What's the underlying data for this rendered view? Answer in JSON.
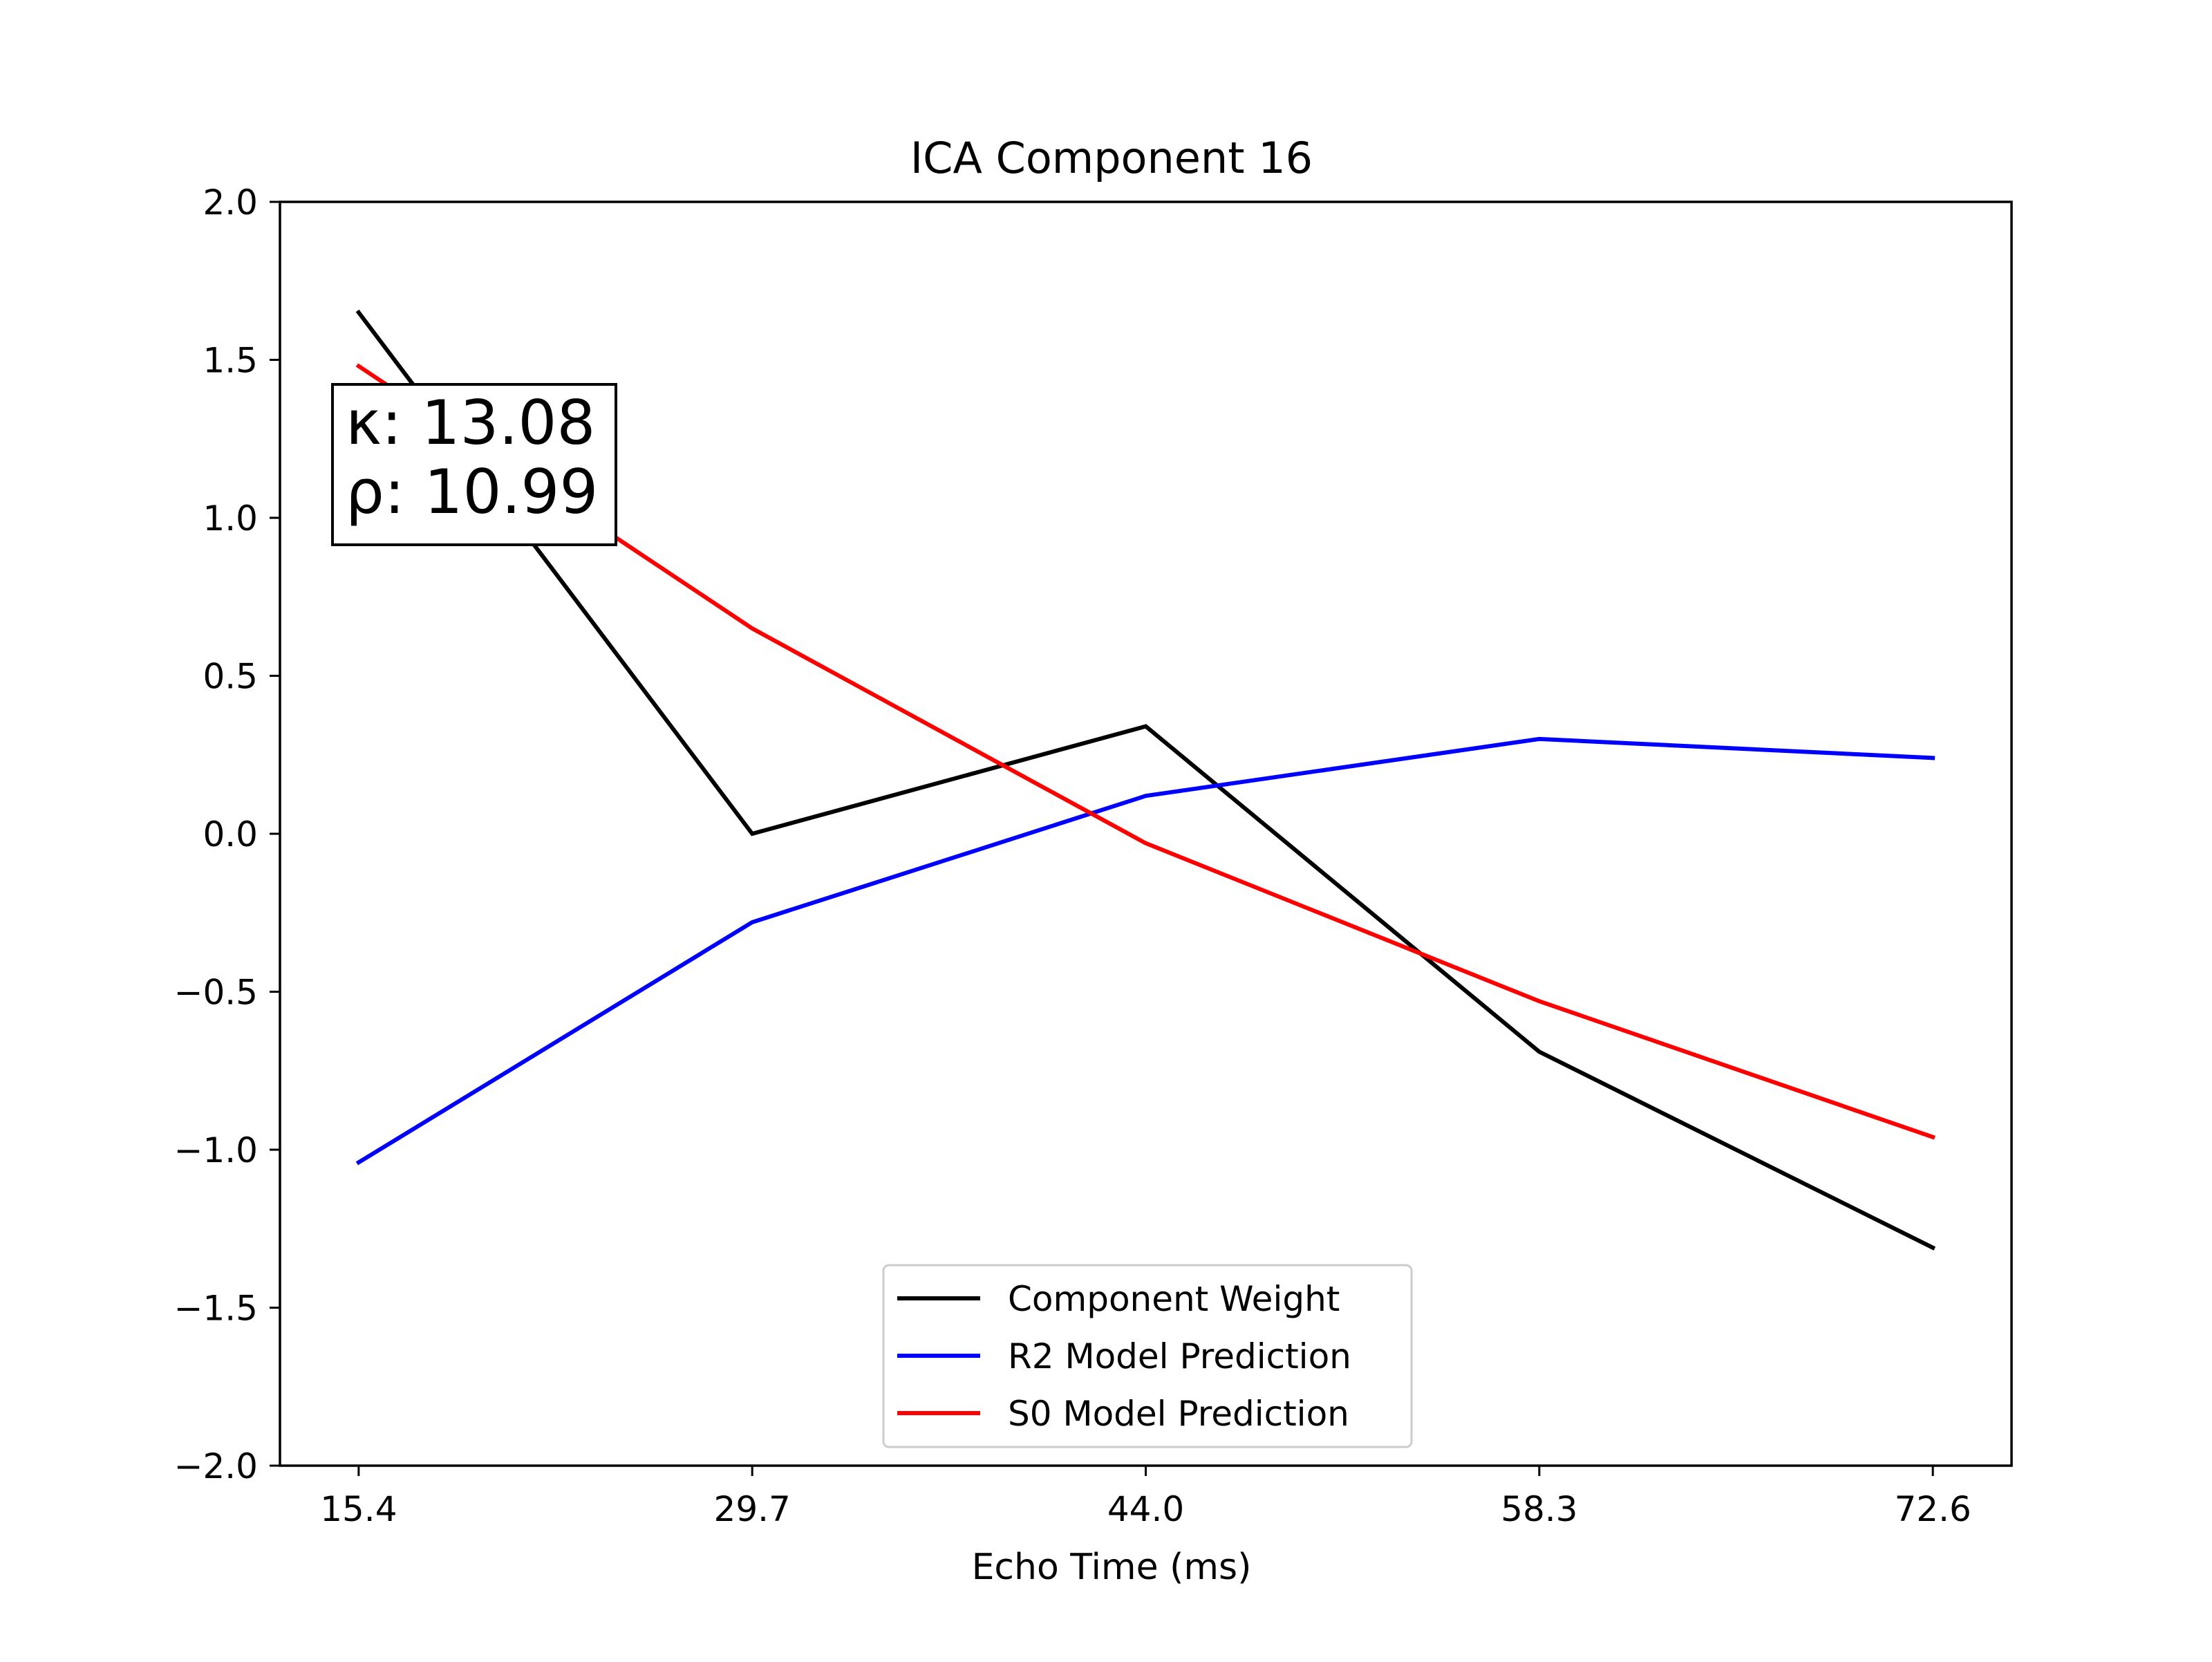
{
  "chart_data": {
    "type": "line",
    "title": "ICA Component 16",
    "xlabel": "Echo Time (ms)",
    "ylabel": "",
    "x": [
      15.4,
      29.7,
      44.0,
      58.3,
      72.6
    ],
    "x_tick_labels": [
      "15.4",
      "29.7",
      "44.0",
      "58.3",
      "72.6"
    ],
    "xlim": [
      12.54,
      75.46
    ],
    "ylim": [
      -2.0,
      2.0
    ],
    "y_ticks": [
      -2.0,
      -1.5,
      -1.0,
      -0.5,
      0.0,
      0.5,
      1.0,
      1.5,
      2.0
    ],
    "y_tick_labels": [
      "−2.0",
      "−1.5",
      "−1.0",
      "−0.5",
      "0.0",
      "0.5",
      "1.0",
      "1.5",
      "2.0"
    ],
    "grid": false,
    "legend_position": "bottom-center",
    "series": [
      {
        "name": "Component Weight",
        "color": "#000000",
        "values": [
          1.65,
          0.0,
          0.34,
          -0.69,
          -1.31
        ]
      },
      {
        "name": "R2 Model Prediction",
        "color": "#0000ff",
        "values": [
          -1.04,
          -0.28,
          0.12,
          0.3,
          0.24
        ]
      },
      {
        "name": "S0 Model Prediction",
        "color": "#ff0000",
        "values": [
          1.48,
          0.65,
          -0.03,
          -0.53,
          -0.96
        ]
      }
    ],
    "annotation": {
      "kappa_label": "κ: 13.08",
      "rho_label": "ρ: 10.99"
    }
  }
}
